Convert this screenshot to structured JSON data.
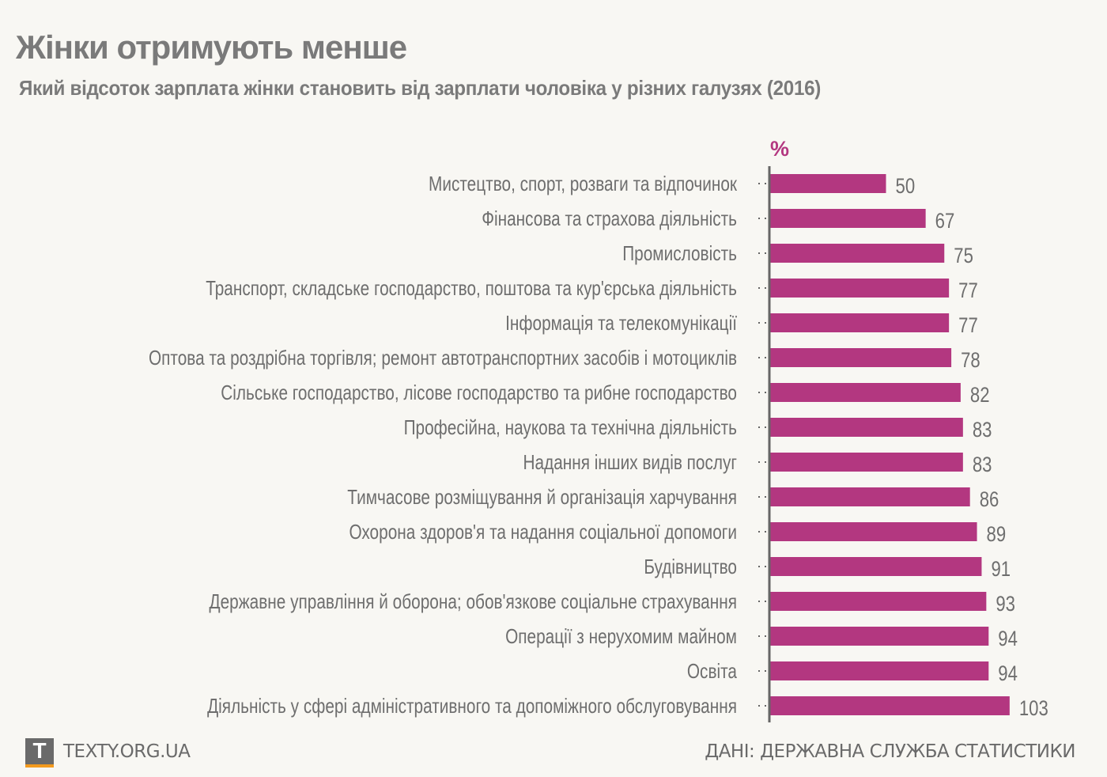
{
  "header": {
    "title": "Жінки отримують менше",
    "subtitle": "Який відсоток зарплата жінки становить від зарплати чоловіка у різних галузях (2016)"
  },
  "footer": {
    "logo_letter": "T",
    "site": "TEXTY.ORG.UA",
    "source": "ДАНІ: ДЕРЖАВНА СЛУЖБА СТАТИСТИКИ"
  },
  "colors": {
    "bar": "#b33780",
    "unit": "#b33780",
    "text": "#6e6e6e",
    "axis": "#666666",
    "background": "#f8f7f3",
    "logo_accent": "#f39a1e"
  },
  "chart_data": {
    "type": "bar",
    "orientation": "horizontal",
    "title": "Жінки отримують менше",
    "subtitle": "Який відсоток зарплата жінки становить від зарплати чоловіка у різних галузях (2016)",
    "unit_label": "%",
    "xlabel": "",
    "ylabel": "",
    "xlim": [
      0,
      110
    ],
    "grid": false,
    "categories": [
      "Мистецтво, спорт, розваги та відпочинок",
      "Фінансова та страхова діяльність",
      "Промисловість",
      "Транспорт, складське господарство, поштова та кур'єрська діяльність",
      "Інформація та телекомунікації",
      "Оптова та роздрібна торгівля; ремонт автотранспортних засобів і мотоциклів",
      "Сільське господарство, лісове господарство та рибне господарство",
      "Професійна, наукова та технічна діяльність",
      "Надання інших видів послуг",
      "Тимчасове розміщування й організація харчування",
      "Охорона здоров'я та надання соціальної допомоги",
      "Будівництво",
      "Державне управління й оборона; обов'язкове соціальне страхування",
      "Операції з нерухомим майном",
      "Освіта",
      "Діяльність у сфері адміністративного та допоміжного обслуговування"
    ],
    "values": [
      50,
      67,
      75,
      77,
      77,
      78,
      82,
      83,
      83,
      86,
      89,
      91,
      93,
      94,
      94,
      103
    ]
  }
}
